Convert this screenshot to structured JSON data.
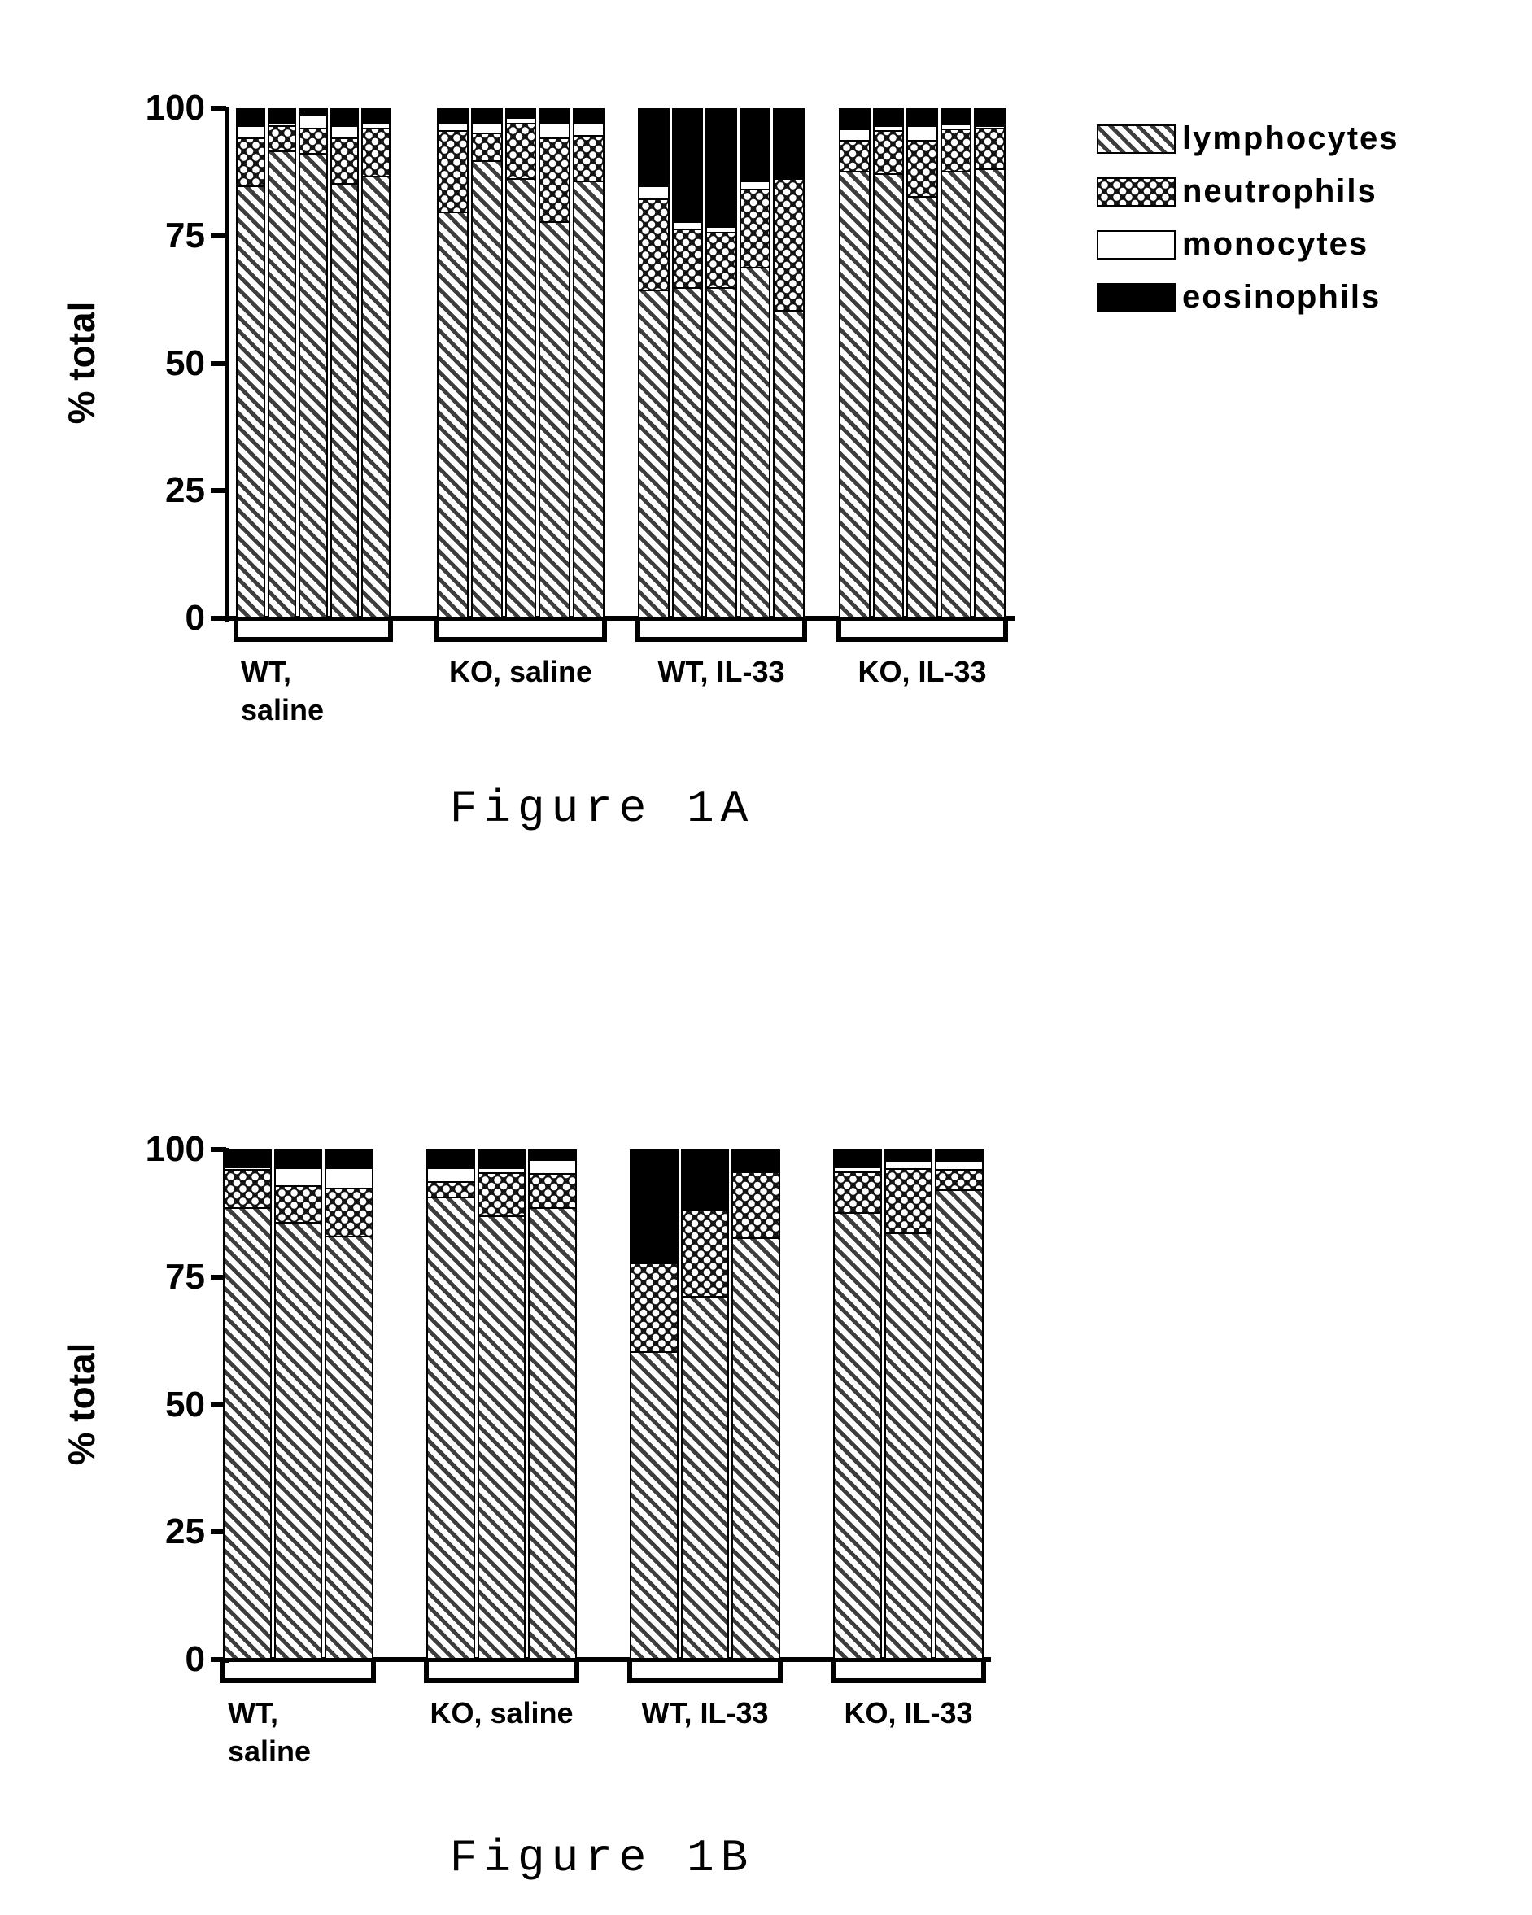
{
  "captions": {
    "figure_a": "Figure 1A",
    "figure_b": "Figure 1B"
  },
  "legend": {
    "position": "top-right",
    "items": [
      {
        "label": "lymphocytes",
        "pattern": "diagonal-hatch"
      },
      {
        "label": "neutrophils",
        "pattern": "black-with-white-dots"
      },
      {
        "label": "monocytes",
        "pattern": "white"
      },
      {
        "label": "eosinophils",
        "pattern": "solid-black"
      }
    ]
  },
  "chart_data": [
    {
      "type": "bar",
      "subtype": "stacked-percent",
      "title": "Figure 1A",
      "xlabel": "",
      "ylabel": "% total",
      "ylim": [
        0,
        100
      ],
      "yticks": [
        0,
        25,
        50,
        75,
        100
      ],
      "grid": false,
      "series_order": [
        "lymphocytes",
        "neutrophils",
        "monocytes",
        "eosinophils"
      ],
      "groups": [
        {
          "label": "WT,\nsaline",
          "label_lines": [
            "WT,",
            "saline"
          ],
          "bars": [
            [
              85,
              9.5,
              2.5,
              3
            ],
            [
              92,
              5,
              0.5,
              2.5
            ],
            [
              91.5,
              5,
              2.5,
              1
            ],
            [
              85.5,
              9,
              2.5,
              3
            ],
            [
              87,
              9.5,
              1,
              2.5
            ]
          ]
        },
        {
          "label": "KO, saline",
          "label_lines": [
            "KO, saline"
          ],
          "bars": [
            [
              80,
              16,
              1.5,
              2.5
            ],
            [
              90,
              5.5,
              2,
              2.5
            ],
            [
              86.5,
              11,
              1,
              1.5
            ],
            [
              78,
              16.5,
              3,
              2.5
            ],
            [
              86,
              9,
              2.5,
              2.5
            ]
          ]
        },
        {
          "label": "WT, IL-33",
          "label_lines": [
            "WT, IL-33"
          ],
          "bars": [
            [
              64.5,
              18,
              2.5,
              15
            ],
            [
              65,
              11.5,
              1.5,
              22
            ],
            [
              65,
              11,
              1,
              23
            ],
            [
              69,
              15.5,
              1.5,
              14
            ],
            [
              60.5,
              26,
              0,
              13.5
            ]
          ]
        },
        {
          "label": "KO, IL-33",
          "label_lines": [
            "KO, IL-33"
          ],
          "bars": [
            [
              88,
              6,
              2.3,
              3.7
            ],
            [
              87.5,
              8.5,
              1,
              3
            ],
            [
              83,
              11,
              3,
              3
            ],
            [
              88,
              8.3,
              1,
              2.7
            ],
            [
              88.5,
              8,
              0.5,
              3
            ]
          ]
        }
      ]
    },
    {
      "type": "bar",
      "subtype": "stacked-percent",
      "title": "Figure 1B",
      "xlabel": "",
      "ylabel": "% total",
      "ylim": [
        0,
        100
      ],
      "yticks": [
        0,
        25,
        50,
        75,
        100
      ],
      "grid": false,
      "series_order": [
        "lymphocytes",
        "neutrophils",
        "monocytes",
        "eosinophils"
      ],
      "groups": [
        {
          "label": "WT,\nsaline",
          "label_lines": [
            "WT,",
            "saline"
          ],
          "bars": [
            [
              89,
              7.5,
              0.5,
              3
            ],
            [
              86,
              7.3,
              3.5,
              3.2
            ],
            [
              83.3,
              9.5,
              4,
              3.2
            ]
          ]
        },
        {
          "label": "KO, saline",
          "label_lines": [
            "KO, saline"
          ],
          "bars": [
            [
              91,
              3,
              2.8,
              3.2
            ],
            [
              87.3,
              8.5,
              1,
              3.2
            ],
            [
              89,
              6.7,
              2.7,
              1.6
            ]
          ]
        },
        {
          "label": "WT, IL-33",
          "label_lines": [
            "WT, IL-33"
          ],
          "bars": [
            [
              60.5,
              17.5,
              0,
              22
            ],
            [
              71.5,
              17,
              0,
              11.5
            ],
            [
              83,
              13,
              0,
              4
            ]
          ]
        },
        {
          "label": "KO, IL-33",
          "label_lines": [
            "KO, IL-33"
          ],
          "bars": [
            [
              88,
              8,
              1,
              3
            ],
            [
              84,
              12.7,
              1.5,
              1.8
            ],
            [
              92.5,
              4,
              1.7,
              1.8
            ]
          ]
        }
      ]
    }
  ],
  "colors": {
    "ink": "#000000",
    "background": "#ffffff"
  }
}
